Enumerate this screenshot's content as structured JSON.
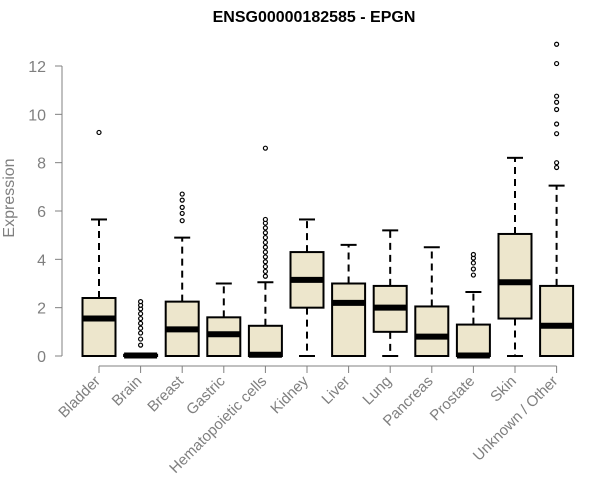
{
  "chart_data": {
    "type": "boxplot",
    "title": "ENSG00000182585 - EPGN",
    "ylabel": "Expression",
    "xlabel": "",
    "ylim": [
      0,
      12
    ],
    "yticks": [
      0,
      2,
      4,
      6,
      8,
      10,
      12
    ],
    "grid": false,
    "box_fill": "#ede6cc",
    "categories": [
      "Bladder",
      "Brain",
      "Breast",
      "Gastric",
      "Hematopoietic cells",
      "Kidney",
      "Liver",
      "Lung",
      "Pancreas",
      "Prostate",
      "Skin",
      "Unknown / Other"
    ],
    "boxes": [
      {
        "min": 0,
        "q1": 0,
        "median": 1.55,
        "q3": 2.4,
        "max": 5.65,
        "outliers": [
          9.25
        ]
      },
      {
        "min": 0,
        "q1": 0,
        "median": 0.02,
        "q3": 0.05,
        "max": 0.05,
        "outliers": [
          0.45,
          0.7,
          0.95,
          1.15,
          1.35,
          1.55,
          1.75,
          1.95,
          2.1,
          2.25
        ]
      },
      {
        "min": 0,
        "q1": 0,
        "median": 1.1,
        "q3": 2.25,
        "max": 4.9,
        "outliers": [
          5.6,
          5.9,
          6.15,
          6.45,
          6.7
        ]
      },
      {
        "min": 0,
        "q1": 0,
        "median": 0.9,
        "q3": 1.6,
        "max": 3.0,
        "outliers": []
      },
      {
        "min": 0,
        "q1": 0,
        "median": 0.05,
        "q3": 1.25,
        "max": 3.05,
        "outliers": [
          3.3,
          3.5,
          3.7,
          3.9,
          4.1,
          4.3,
          4.5,
          4.7,
          4.9,
          5.1,
          5.3,
          5.5,
          5.65,
          8.6
        ]
      },
      {
        "min": 0,
        "q1": 2.0,
        "median": 3.15,
        "q3": 4.3,
        "max": 5.65,
        "outliers": []
      },
      {
        "min": 0,
        "q1": 0,
        "median": 2.2,
        "q3": 3.0,
        "max": 4.6,
        "outliers": []
      },
      {
        "min": 0,
        "q1": 1.0,
        "median": 2.0,
        "q3": 2.9,
        "max": 5.2,
        "outliers": []
      },
      {
        "min": 0,
        "q1": 0,
        "median": 0.8,
        "q3": 2.05,
        "max": 4.5,
        "outliers": []
      },
      {
        "min": 0,
        "q1": 0,
        "median": 0.02,
        "q3": 1.3,
        "max": 2.65,
        "outliers": [
          3.35,
          3.6,
          3.85,
          4.05,
          4.2
        ]
      },
      {
        "min": 0,
        "q1": 1.55,
        "median": 3.05,
        "q3": 5.05,
        "max": 8.2,
        "outliers": []
      },
      {
        "min": 0,
        "q1": 0,
        "median": 1.25,
        "q3": 2.9,
        "max": 7.05,
        "outliers": [
          7.8,
          8.0,
          9.2,
          9.6,
          10.2,
          10.5,
          10.75,
          12.1,
          12.9
        ]
      }
    ]
  }
}
